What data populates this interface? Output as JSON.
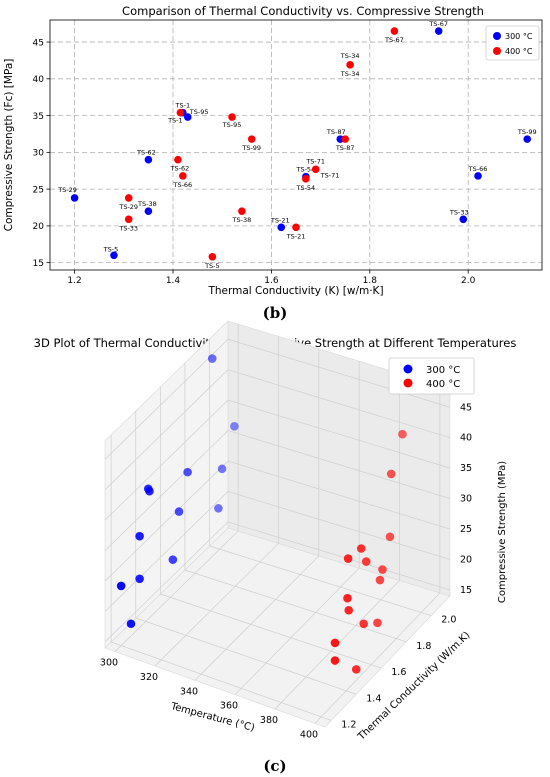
{
  "chart_data": [
    {
      "type": "scatter",
      "title": "Comparison of Thermal Conductivity vs. Compressive Strength",
      "xlabel": "Thermal Conductivity (K) [w/m·K]",
      "ylabel": "Compressive Strength (Fc) [MPa]",
      "xlim": [
        1.15,
        2.15
      ],
      "ylim": [
        14,
        48
      ],
      "xticks": [
        1.2,
        1.4,
        1.6,
        1.8,
        2.0
      ],
      "yticks": [
        15,
        20,
        25,
        30,
        35,
        40,
        45
      ],
      "grid": true,
      "grid_style": "dashed",
      "legend": "top-right",
      "panel_label": "(b)",
      "series": [
        {
          "name": "300 °C",
          "color": "#0000ff",
          "points": [
            {
              "label": "TS-1",
              "x": 1.42,
              "y": 35.4
            },
            {
              "label": "TS-95",
              "x": 1.43,
              "y": 34.8
            },
            {
              "label": "TS-62",
              "x": 1.35,
              "y": 29.0
            },
            {
              "label": "TS-29",
              "x": 1.2,
              "y": 23.8
            },
            {
              "label": "TS-38",
              "x": 1.35,
              "y": 22.0
            },
            {
              "label": "TS-5",
              "x": 1.28,
              "y": 16.0
            },
            {
              "label": "TS-21",
              "x": 1.62,
              "y": 19.8
            },
            {
              "label": "TS-54",
              "x": 1.67,
              "y": 26.7
            },
            {
              "label": "TS-87",
              "x": 1.74,
              "y": 31.8
            },
            {
              "label": "TS-67",
              "x": 1.94,
              "y": 46.5
            },
            {
              "label": "TS-66",
              "x": 2.02,
              "y": 26.8
            },
            {
              "label": "TS-33",
              "x": 1.99,
              "y": 20.9
            },
            {
              "label": "TS-99",
              "x": 2.12,
              "y": 31.8
            }
          ]
        },
        {
          "name": "400 °C",
          "color": "#ff0000",
          "points": [
            {
              "label": "TS-1",
              "x": 1.415,
              "y": 35.4
            },
            {
              "label": "TS-95",
              "x": 1.52,
              "y": 34.8
            },
            {
              "label": "TS-99",
              "x": 1.56,
              "y": 31.8
            },
            {
              "label": "TS-62",
              "x": 1.41,
              "y": 29.0
            },
            {
              "label": "TS-66",
              "x": 1.42,
              "y": 26.8
            },
            {
              "label": "TS-29",
              "x": 1.31,
              "y": 23.8
            },
            {
              "label": "TS-33",
              "x": 1.31,
              "y": 20.9
            },
            {
              "label": "TS-38",
              "x": 1.54,
              "y": 22.0
            },
            {
              "label": "TS-5",
              "x": 1.48,
              "y": 15.8
            },
            {
              "label": "TS-21",
              "x": 1.65,
              "y": 19.8
            },
            {
              "label": "TS-54",
              "x": 1.67,
              "y": 26.4
            },
            {
              "label": "TS-71",
              "x": 1.69,
              "y": 27.7
            },
            {
              "label": "TS-87",
              "x": 1.75,
              "y": 31.8
            },
            {
              "label": "TS-34",
              "x": 1.76,
              "y": 41.9
            },
            {
              "label": "TS-67",
              "x": 1.85,
              "y": 46.5
            }
          ]
        }
      ]
    },
    {
      "type": "scatter3d",
      "title": "3D Plot of Thermal Conductivity vs Compressive Strength at Different Temperatures",
      "xlabel": "Temperature (°C)",
      "ylabel": "Thermal Conductivity (W/m.K)",
      "zlabel": "Compressive Strength (MPa)",
      "xlim": [
        295,
        405
      ],
      "ylim": [
        1.15,
        2.15
      ],
      "zlim": [
        14,
        48
      ],
      "xticks": [
        300,
        320,
        340,
        360,
        380,
        400
      ],
      "yticks": [
        1.2,
        1.4,
        1.6,
        1.8,
        2.0
      ],
      "zticks": [
        15,
        20,
        25,
        30,
        35,
        40,
        45
      ],
      "legend": "top-right",
      "panel_label": "(c)",
      "series": [
        {
          "name": "300 °C",
          "color": "#0000ff",
          "temperature": 300,
          "points": [
            {
              "k": 1.42,
              "fc": 35.4
            },
            {
              "k": 1.43,
              "fc": 34.8
            },
            {
              "k": 1.35,
              "fc": 29.0
            },
            {
              "k": 1.2,
              "fc": 23.8
            },
            {
              "k": 1.35,
              "fc": 22.0
            },
            {
              "k": 1.28,
              "fc": 16.0
            },
            {
              "k": 1.62,
              "fc": 19.8
            },
            {
              "k": 1.67,
              "fc": 26.7
            },
            {
              "k": 1.74,
              "fc": 31.8
            },
            {
              "k": 1.94,
              "fc": 46.5
            },
            {
              "k": 2.02,
              "fc": 26.8
            },
            {
              "k": 1.99,
              "fc": 20.9
            },
            {
              "k": 2.12,
              "fc": 31.8
            }
          ]
        },
        {
          "name": "400 °C",
          "color": "#ff0000",
          "temperature": 400,
          "points": [
            {
              "k": 1.415,
              "fc": 35.4
            },
            {
              "k": 1.52,
              "fc": 34.8
            },
            {
              "k": 1.56,
              "fc": 31.8
            },
            {
              "k": 1.41,
              "fc": 29.0
            },
            {
              "k": 1.42,
              "fc": 26.8
            },
            {
              "k": 1.31,
              "fc": 23.8
            },
            {
              "k": 1.31,
              "fc": 20.9
            },
            {
              "k": 1.54,
              "fc": 22.0
            },
            {
              "k": 1.48,
              "fc": 15.8
            },
            {
              "k": 1.65,
              "fc": 19.8
            },
            {
              "k": 1.67,
              "fc": 26.4
            },
            {
              "k": 1.69,
              "fc": 27.7
            },
            {
              "k": 1.75,
              "fc": 31.8
            },
            {
              "k": 1.76,
              "fc": 41.9
            },
            {
              "k": 1.85,
              "fc": 46.5
            }
          ]
        }
      ]
    }
  ]
}
